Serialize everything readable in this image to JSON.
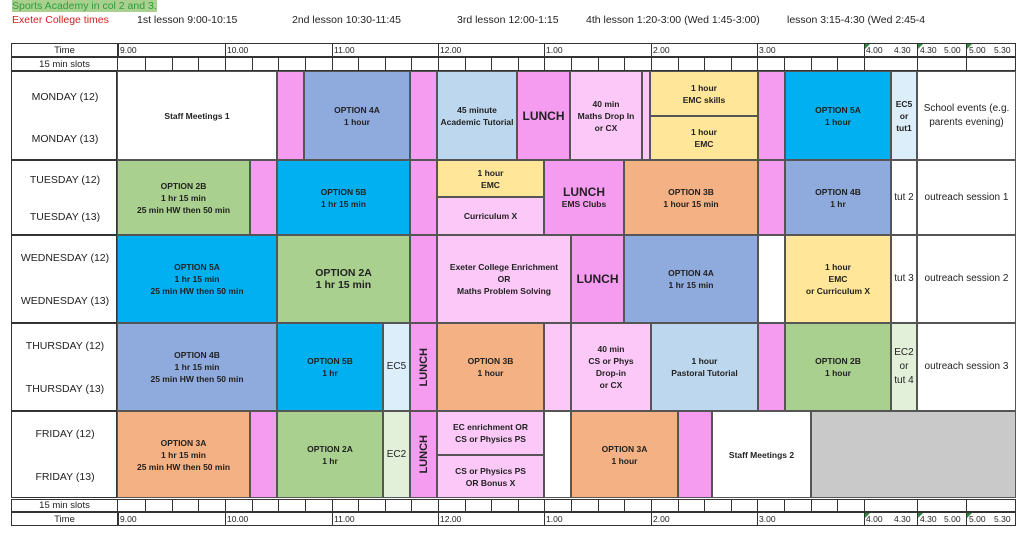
{
  "notes": {
    "sports_academy": "Sports Academy in col 2 and 3.",
    "exeter_college": "Exeter College times"
  },
  "lessons": [
    "1st lesson 9:00-10:15",
    "2nd lesson 10:30-11:45",
    "3rd lesson 12:00-1:15",
    "4th lesson 1:20-3:00 (Wed 1:45-3:00)",
    "lesson 3:15-4:30 (Wed 2:45-4"
  ],
  "time_row": {
    "label": "Time",
    "ticks": [
      "9.00",
      "10.00",
      "11.00",
      "12.00",
      "1.00",
      "2.00",
      "3.00",
      "4.00",
      "4.30",
      "4.30",
      "5.00",
      "5.00",
      "5.30"
    ]
  },
  "slots_row": {
    "label": "15 min slots"
  },
  "days": [
    {
      "a": "MONDAY (12)",
      "b": "MONDAY (13)"
    },
    {
      "a": "TUESDAY (12)",
      "b": "TUESDAY (13)"
    },
    {
      "a": "WEDNESDAY (12)",
      "b": "WEDNESDAY (13)"
    },
    {
      "a": "THURSDAY (12)",
      "b": "THURSDAY (13)"
    },
    {
      "a": "FRIDAY (12)",
      "b": "FRIDAY (13)"
    }
  ],
  "blocks": {
    "mon_staff": "Staff Meetings 1",
    "mon_opt4a": [
      "OPTION 4A",
      "1 hour"
    ],
    "mon_tutorial": [
      "45 minute",
      "Academic Tutorial"
    ],
    "mon_lunch": "LUNCH",
    "mon_maths": [
      "40 min",
      "Maths Drop In",
      "or CX"
    ],
    "mon_emc_skills": [
      "1 hour",
      "EMC skills"
    ],
    "mon_emc": [
      "1 hour",
      "EMC"
    ],
    "mon_opt5a": [
      "OPTION 5A",
      "1 hour"
    ],
    "mon_ec5": [
      "EC5",
      "or",
      "tut1"
    ],
    "mon_events": [
      "School events (e.g.",
      "parents evening)"
    ],
    "tue_opt2b": [
      "OPTION 2B",
      "1 hr 15 min",
      "25 min HW then 50 min"
    ],
    "tue_opt5b": [
      "OPTION 5B",
      "1 hr 15 min"
    ],
    "tue_emc": [
      "1 hour",
      "EMC"
    ],
    "tue_curx": "Curriculum X",
    "tue_lunch": "LUNCH",
    "tue_ems": "EMS Clubs",
    "tue_opt3b": [
      "OPTION 3B",
      "1 hour 15 min"
    ],
    "tue_opt4b": [
      "OPTION 4B",
      "1 hr"
    ],
    "tue_tut": "tut 2",
    "tue_outreach": "outreach session 1",
    "wed_opt5a": [
      "OPTION 5A",
      "1 hr 15 min",
      "25 min HW then 50 min"
    ],
    "wed_opt2a": [
      "OPTION 2A",
      "1 hr 15 min"
    ],
    "wed_exeter": [
      "Exeter College Enrichment",
      "OR",
      "Maths Problem Solving"
    ],
    "wed_lunch": "LUNCH",
    "wed_opt4a": [
      "OPTION 4A",
      "1 hr 15 min"
    ],
    "wed_emc": [
      "1 hour",
      "EMC",
      "or Curriculum X"
    ],
    "wed_tut": "tut 3",
    "wed_outreach": "outreach session 2",
    "thu_opt4b": [
      "OPTION 4B",
      "1 hr 15 min",
      "25 min HW then 50 min"
    ],
    "thu_opt5b": [
      "OPTION 5B",
      "1 hr"
    ],
    "thu_ec5": "EC5",
    "thu_lunch": "LUNCH",
    "thu_opt3b": [
      "OPTION 3B",
      "1 hour"
    ],
    "thu_cs": [
      "40 min",
      "CS or Phys",
      "Drop-in",
      "or CX"
    ],
    "thu_pastoral": [
      "1 hour",
      "Pastoral Tutorial"
    ],
    "thu_opt2b": [
      "OPTION 2B",
      "1 hour"
    ],
    "thu_ec2": [
      "EC2",
      "or",
      "tut 4"
    ],
    "thu_outreach": "outreach session 3",
    "fri_opt3a": [
      "OPTION 3A",
      "1 hr 15 min",
      "25 min HW then 50 min"
    ],
    "fri_opt2a": [
      "OPTION 2A",
      "1 hr"
    ],
    "fri_ec2": "EC2",
    "fri_lunch": "LUNCH",
    "fri_ec_enrich": [
      "EC enrichment OR",
      "CS or Physics PS"
    ],
    "fri_cs_phys": [
      "CS or Physics PS",
      "OR Bonus X"
    ],
    "fri_opt3a_b": [
      "OPTION 3A",
      "1 hour"
    ],
    "fri_staff": "Staff Meetings 2"
  },
  "colors": {
    "pink": "#f59bf0",
    "light_pink": "#fbc8f8",
    "blue": "#8faadc",
    "cyan": "#00b0f0",
    "light_blue": "#bdd7ee",
    "green": "#a9d08e",
    "light_green": "#e2efd9",
    "orange": "#f4b183",
    "yellow": "#ffe699",
    "grey": "#c9c9c9",
    "note_green": "#2e9e3f",
    "note_red": "#d42020"
  }
}
